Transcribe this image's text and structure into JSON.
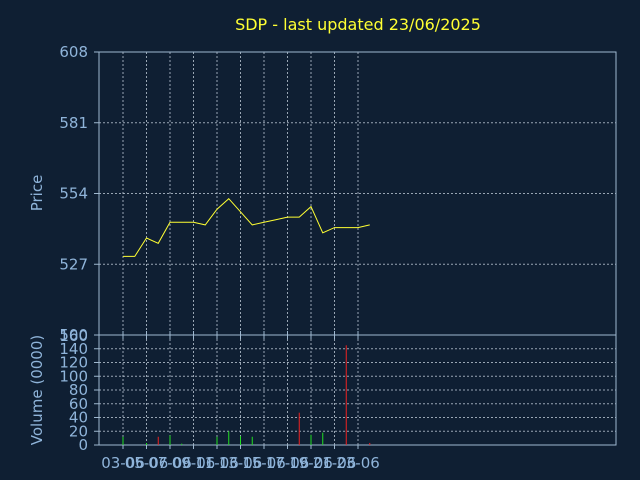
{
  "chart_data": {
    "type": "line",
    "title": "SDP - last updated 23/06/2025",
    "x_tick_labels": [
      "03-06",
      "05-06",
      "07-06",
      "09-06",
      "11-06",
      "13-06",
      "15-06",
      "17-06",
      "19-06",
      "21-06",
      "23-06"
    ],
    "price_panel": {
      "ylabel": "Price",
      "ylim": [
        500,
        608
      ],
      "yticks": [
        500,
        527,
        554,
        581,
        608
      ],
      "line_color": "#ffff33",
      "values": [
        530,
        530,
        537,
        535,
        543,
        543,
        543,
        542,
        548,
        552,
        547,
        542,
        543,
        544,
        545,
        545,
        549,
        539,
        541,
        541,
        541,
        542
      ]
    },
    "volume_panel": {
      "ylabel": "Volume (0000)",
      "top_label": "160",
      "ylim": [
        0,
        160
      ],
      "yticks": [
        0,
        20,
        40,
        60,
        80,
        100,
        120,
        140
      ],
      "up_color": "#22dd22",
      "down_color": "#ee2222",
      "values": [
        12,
        0,
        3,
        12,
        14,
        2,
        0,
        0,
        12,
        20,
        13,
        12,
        0,
        0,
        0,
        47,
        15,
        18,
        0,
        145,
        0,
        3
      ],
      "colors": [
        "up",
        "up",
        "up",
        "down",
        "up",
        "up",
        "up",
        "up",
        "up",
        "up",
        "up",
        "up",
        "up",
        "up",
        "up",
        "down",
        "up",
        "up",
        "down",
        "down",
        "up",
        "down"
      ]
    }
  }
}
